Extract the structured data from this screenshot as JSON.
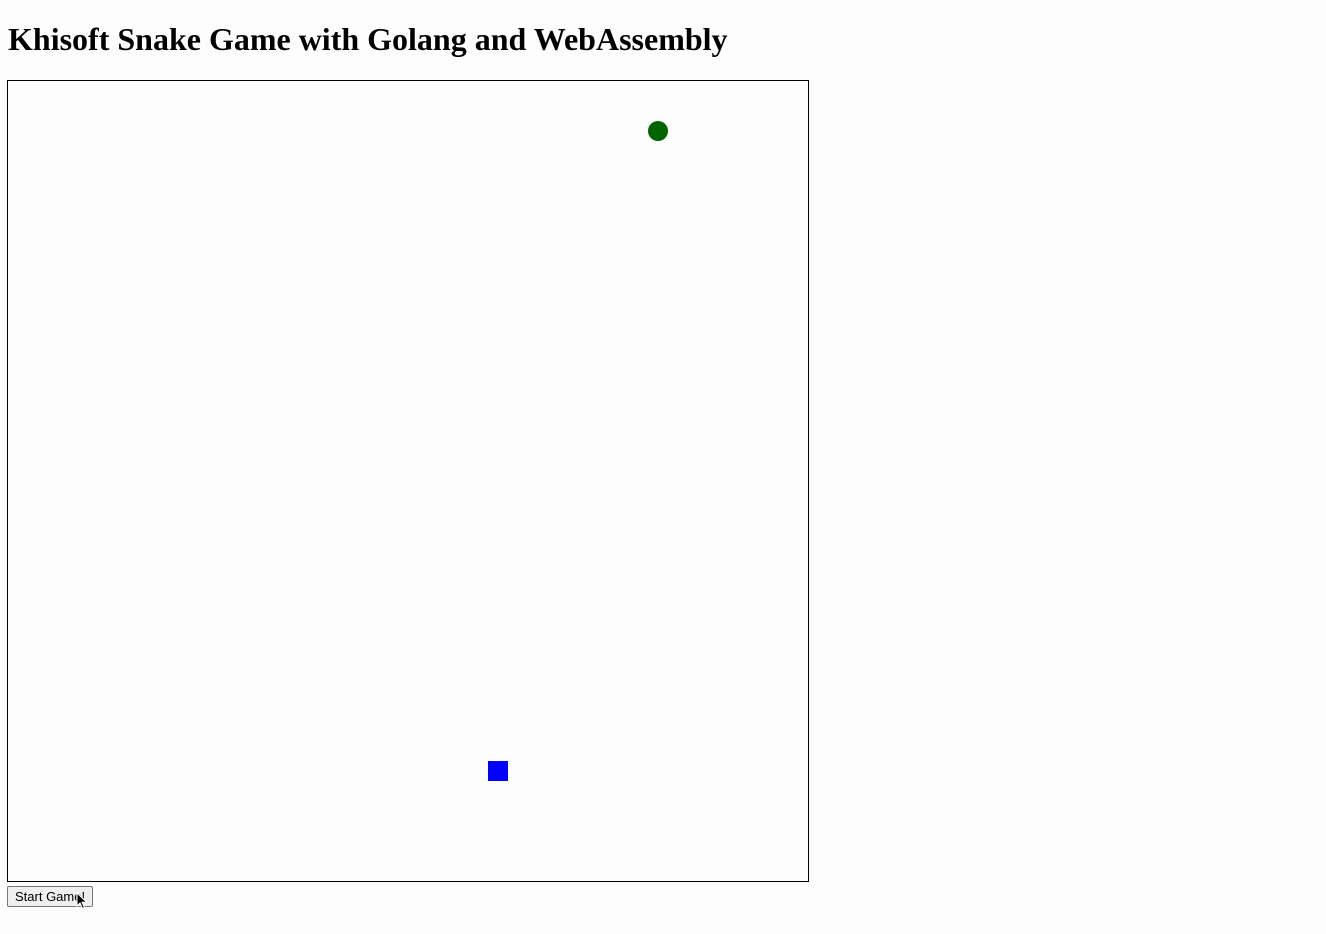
{
  "page": {
    "title": "Khisoft Snake Game with Golang and WebAssembly"
  },
  "game": {
    "grid_size": 40,
    "snake": {
      "color": "#0000ff",
      "segments": [
        {
          "x": 24,
          "y": 34
        }
      ]
    },
    "food": {
      "color": "#006400",
      "position": {
        "x": 32,
        "y": 2
      }
    }
  },
  "controls": {
    "start_label": "Start Game!"
  },
  "cursor": {
    "icon": "arrow-cursor-icon"
  }
}
